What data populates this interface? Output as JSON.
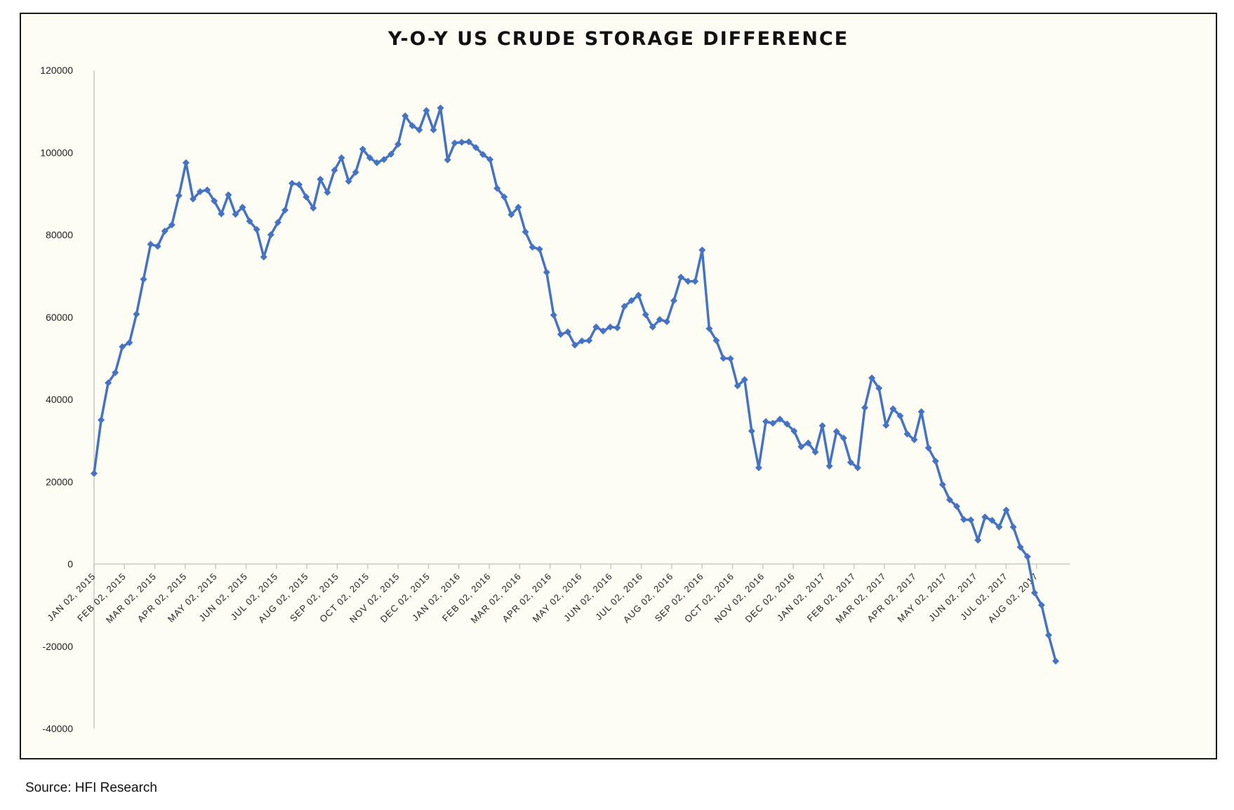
{
  "chart_data": {
    "type": "line",
    "title": "Y-O-Y US CRUDE STORAGE DIFFERENCE",
    "xlabel": "",
    "ylabel": "",
    "ylim": [
      -40000,
      120000
    ],
    "yticks": [
      -40000,
      -20000,
      0,
      20000,
      40000,
      60000,
      80000,
      100000,
      120000
    ],
    "x_tick_labels": [
      "JAN 02, 2015",
      "FEB 02, 2015",
      "MAR 02, 2015",
      "APR 02, 2015",
      "MAY 02, 2015",
      "JUN 02, 2015",
      "JUL 02, 2015",
      "AUG 02, 2015",
      "SEP 02, 2015",
      "OCT 02, 2015",
      "NOV 02, 2015",
      "DEC 02, 2015",
      "JAN 02, 2016",
      "FEB 02, 2016",
      "MAR 02, 2016",
      "APR 02, 2016",
      "MAY 02, 2016",
      "JUN 02, 2016",
      "JUL 02, 2016",
      "AUG 02, 2016",
      "SEP 02, 2016",
      "OCT 02, 2016",
      "NOV 02, 2016",
      "DEC 02, 2016",
      "JAN 02, 2017",
      "FEB 02, 2017",
      "MAR 02, 2017",
      "APR 02, 2017",
      "MAY 02, 2017",
      "JUN 02, 2017",
      "JUL 02, 2017",
      "AUG 02, 2017"
    ],
    "grid": false,
    "legend": "none",
    "series": [
      {
        "color": "#4472c4",
        "marker": "diamond",
        "values": [
          22000,
          35000,
          44000,
          46500,
          52800,
          53800,
          60700,
          69200,
          77700,
          77200,
          80900,
          82400,
          89500,
          97500,
          88700,
          90500,
          90900,
          88200,
          85100,
          89700,
          85000,
          86700,
          83300,
          81300,
          74600,
          80000,
          83000,
          86000,
          92500,
          92200,
          89200,
          86500,
          93500,
          90300,
          95700,
          98700,
          93000,
          95200,
          100800,
          98700,
          97500,
          98300,
          99600,
          102000,
          108900,
          106500,
          105500,
          110200,
          105500,
          110800,
          98200,
          102300,
          102500,
          102600,
          101200,
          99500,
          98300,
          91300,
          89200,
          84900,
          86700,
          80700,
          77000,
          76500,
          70900,
          60500,
          55800,
          56400,
          53200,
          54200,
          54300,
          57600,
          56600,
          57600,
          57400,
          62600,
          64000,
          65300,
          60600,
          57600,
          59400,
          58900,
          64000,
          69700,
          68700,
          68700,
          76300,
          57200,
          54300,
          50000,
          49900,
          43300,
          44800,
          32300,
          23400,
          34600,
          34200,
          35200,
          34000,
          32300,
          28500,
          29400,
          27200,
          33600,
          23800,
          32200,
          30600,
          24700,
          23400,
          38000,
          45200,
          42700,
          33700,
          37700,
          36000,
          31600,
          30200,
          37000,
          28200,
          25000,
          19300,
          15600,
          14000,
          10800,
          10700,
          5800,
          11400,
          10600,
          9000,
          13100,
          9000,
          4100,
          1800,
          -7000,
          -10000,
          -17300,
          -23600
        ]
      }
    ]
  },
  "footer": {
    "source": "Source: HFI Research"
  }
}
